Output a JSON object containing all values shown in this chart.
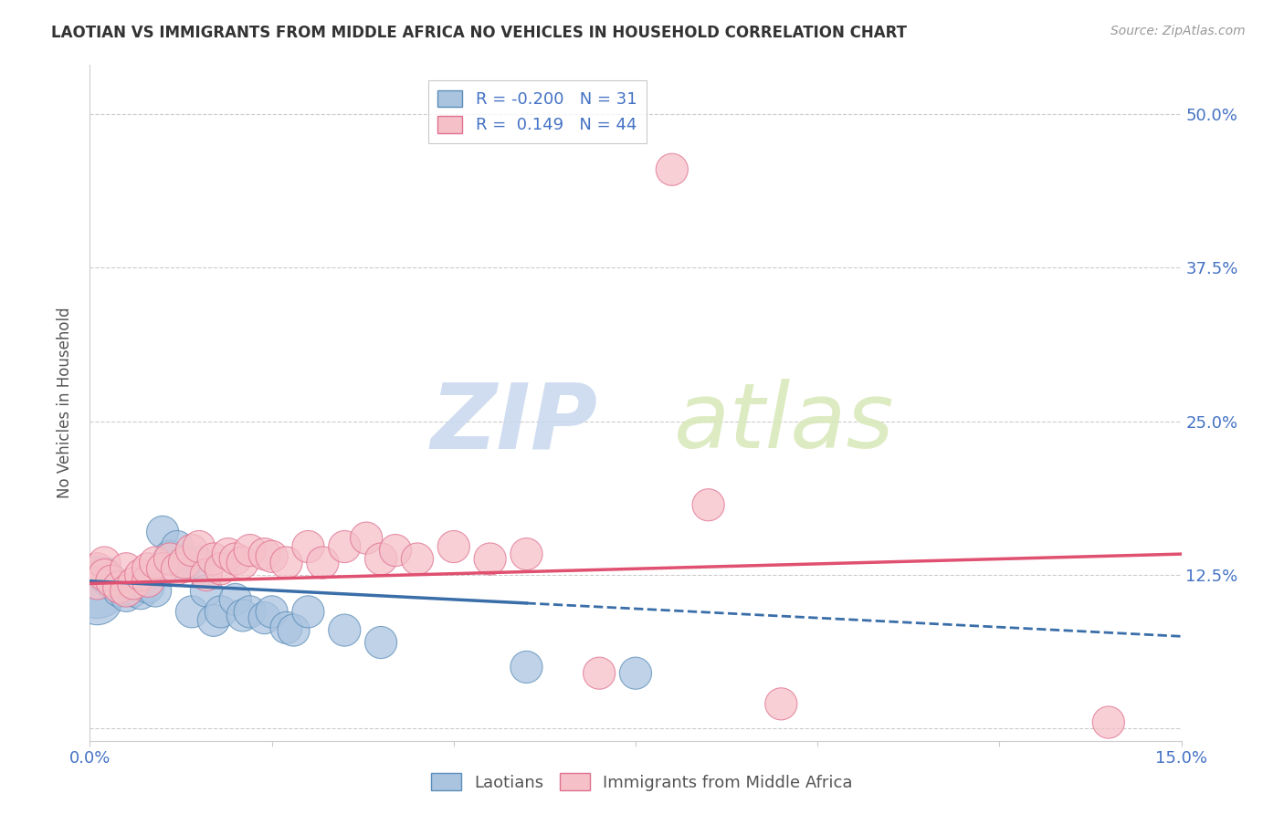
{
  "title": "LAOTIAN VS IMMIGRANTS FROM MIDDLE AFRICA NO VEHICLES IN HOUSEHOLD CORRELATION CHART",
  "source": "Source: ZipAtlas.com",
  "ylabel": "No Vehicles in Household",
  "xlim": [
    0.0,
    0.15
  ],
  "ylim": [
    -0.01,
    0.54
  ],
  "xticks": [
    0.0,
    0.025,
    0.05,
    0.075,
    0.1,
    0.125,
    0.15
  ],
  "xticklabels": [
    "0.0%",
    "",
    "",
    "",
    "",
    "",
    "15.0%"
  ],
  "yticks": [
    0.0,
    0.125,
    0.25,
    0.375,
    0.5
  ],
  "yticklabels": [
    "",
    "12.5%",
    "25.0%",
    "37.5%",
    "50.0%"
  ],
  "watermark_zip": "ZIP",
  "watermark_atlas": "atlas",
  "background_color": "#ffffff",
  "grid_color": "#cccccc",
  "laotian_color": "#aac4e0",
  "laotian_edge_color": "#5b8db8",
  "laotian_R": -0.2,
  "laotian_N": 31,
  "laotian_line_color": "#3a6ea8",
  "laotian_x": [
    0.001,
    0.001,
    0.002,
    0.003,
    0.004,
    0.005,
    0.006,
    0.007,
    0.008,
    0.009,
    0.01,
    0.011,
    0.012,
    0.013,
    0.014,
    0.015,
    0.016,
    0.017,
    0.018,
    0.02,
    0.021,
    0.022,
    0.024,
    0.025,
    0.027,
    0.028,
    0.03,
    0.035,
    0.04,
    0.06,
    0.075
  ],
  "laotian_y": [
    0.115,
    0.105,
    0.125,
    0.118,
    0.112,
    0.108,
    0.112,
    0.11,
    0.115,
    0.112,
    0.16,
    0.14,
    0.148,
    0.132,
    0.095,
    0.135,
    0.112,
    0.088,
    0.095,
    0.105,
    0.092,
    0.095,
    0.09,
    0.095,
    0.082,
    0.08,
    0.095,
    0.08,
    0.07,
    0.05,
    0.045
  ],
  "laotian_size": [
    300,
    200,
    100,
    80,
    80,
    80,
    80,
    80,
    80,
    80,
    80,
    80,
    80,
    80,
    80,
    80,
    80,
    80,
    80,
    80,
    80,
    80,
    80,
    80,
    80,
    80,
    80,
    80,
    80,
    80,
    80
  ],
  "africa_color": "#f5c0c8",
  "africa_edge_color": "#e07090",
  "africa_R": 0.149,
  "africa_N": 44,
  "africa_line_color": "#e05070",
  "africa_x": [
    0.001,
    0.001,
    0.002,
    0.002,
    0.003,
    0.004,
    0.005,
    0.005,
    0.006,
    0.007,
    0.008,
    0.008,
    0.009,
    0.01,
    0.011,
    0.012,
    0.013,
    0.014,
    0.015,
    0.016,
    0.017,
    0.018,
    0.019,
    0.02,
    0.021,
    0.022,
    0.024,
    0.025,
    0.027,
    0.03,
    0.032,
    0.035,
    0.038,
    0.04,
    0.042,
    0.045,
    0.05,
    0.055,
    0.06,
    0.07,
    0.08,
    0.085,
    0.095,
    0.14
  ],
  "africa_y": [
    0.13,
    0.118,
    0.135,
    0.125,
    0.12,
    0.115,
    0.13,
    0.112,
    0.118,
    0.125,
    0.12,
    0.13,
    0.135,
    0.13,
    0.138,
    0.13,
    0.135,
    0.145,
    0.148,
    0.125,
    0.138,
    0.13,
    0.142,
    0.138,
    0.135,
    0.145,
    0.142,
    0.14,
    0.135,
    0.148,
    0.135,
    0.148,
    0.155,
    0.138,
    0.145,
    0.138,
    0.148,
    0.138,
    0.142,
    0.045,
    0.455,
    0.182,
    0.02,
    0.005
  ],
  "africa_size": [
    80,
    80,
    80,
    80,
    80,
    80,
    80,
    80,
    80,
    80,
    80,
    80,
    80,
    80,
    80,
    80,
    80,
    80,
    80,
    80,
    80,
    80,
    80,
    80,
    80,
    80,
    80,
    80,
    80,
    80,
    80,
    80,
    80,
    80,
    80,
    80,
    80,
    80,
    80,
    80,
    80,
    80,
    80,
    80
  ],
  "laotian_trend_x_start": 0.0,
  "laotian_trend_x_solid_end": 0.06,
  "laotian_trend_x_end": 0.15,
  "laotian_trend_y_start": 0.12,
  "laotian_trend_y_end": 0.075,
  "africa_trend_x_start": 0.0,
  "africa_trend_x_end": 0.15,
  "africa_trend_y_start": 0.118,
  "africa_trend_y_end": 0.142
}
